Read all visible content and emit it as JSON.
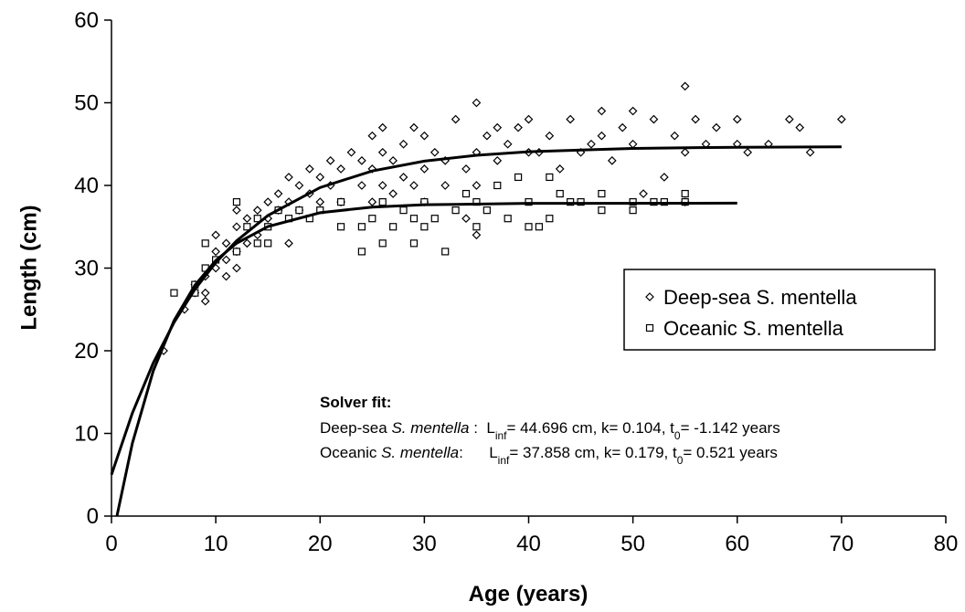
{
  "chart_data": {
    "type": "scatter",
    "x_label": "Age (years)",
    "y_label": "Length (cm)",
    "xlim": [
      0,
      80
    ],
    "xticks": [
      0,
      10,
      20,
      30,
      40,
      50,
      60,
      70,
      80
    ],
    "ylim": [
      0,
      60
    ],
    "yticks": [
      0,
      10,
      20,
      30,
      40,
      50,
      60
    ],
    "grid": false,
    "legend": "right",
    "series": [
      {
        "name": "Deep-sea S. mentella",
        "color": "#000000",
        "marker": "diamond",
        "x": [
          5,
          7,
          8,
          8,
          9,
          9,
          9,
          10,
          10,
          10,
          11,
          11,
          11,
          12,
          12,
          12,
          12,
          13,
          13,
          14,
          14,
          15,
          15,
          16,
          16,
          17,
          17,
          17,
          18,
          18,
          19,
          19,
          20,
          20,
          21,
          21,
          22,
          22,
          23,
          24,
          24,
          25,
          25,
          25,
          26,
          26,
          26,
          27,
          27,
          28,
          28,
          29,
          29,
          30,
          30,
          30,
          31,
          32,
          32,
          33,
          34,
          34,
          35,
          35,
          35,
          35,
          36,
          37,
          37,
          38,
          39,
          40,
          40,
          41,
          42,
          43,
          44,
          45,
          46,
          47,
          47,
          48,
          49,
          50,
          50,
          51,
          52,
          53,
          54,
          55,
          55,
          55,
          56,
          57,
          58,
          60,
          60,
          61,
          63,
          65,
          66,
          67,
          70
        ],
        "values": [
          20,
          25,
          27,
          28,
          26,
          27,
          29,
          30,
          32,
          34,
          29,
          31,
          33,
          30,
          32,
          35,
          37,
          33,
          36,
          34,
          37,
          36,
          38,
          37,
          39,
          33,
          38,
          41,
          37,
          40,
          39,
          42,
          38,
          41,
          40,
          43,
          38,
          42,
          44,
          40,
          43,
          38,
          42,
          46,
          40,
          44,
          47,
          39,
          43,
          41,
          45,
          40,
          47,
          38,
          42,
          46,
          44,
          40,
          43,
          48,
          36,
          42,
          34,
          40,
          44,
          50,
          46,
          43,
          47,
          45,
          47,
          44,
          48,
          44,
          46,
          42,
          48,
          44,
          45,
          49,
          46,
          43,
          47,
          49,
          45,
          39,
          48,
          41,
          46,
          52,
          44,
          38,
          48,
          45,
          47,
          48,
          45,
          44,
          45,
          48,
          47,
          44,
          48
        ]
      },
      {
        "name": "Oceanic S. mentella",
        "color": "#000000",
        "marker": "square",
        "x": [
          6,
          8,
          8,
          9,
          9,
          10,
          12,
          12,
          13,
          14,
          14,
          15,
          15,
          16,
          17,
          18,
          19,
          20,
          22,
          22,
          24,
          24,
          25,
          26,
          26,
          27,
          28,
          29,
          29,
          30,
          30,
          31,
          32,
          33,
          34,
          35,
          35,
          36,
          37,
          38,
          39,
          40,
          40,
          41,
          42,
          42,
          43,
          44,
          45,
          47,
          47,
          50,
          50,
          52,
          53,
          55,
          55
        ],
        "values": [
          27,
          27,
          28,
          30,
          33,
          31,
          32,
          38,
          35,
          33,
          36,
          33,
          35,
          37,
          36,
          37,
          36,
          37,
          35,
          38,
          32,
          35,
          36,
          33,
          38,
          35,
          37,
          33,
          36,
          35,
          38,
          36,
          32,
          37,
          39,
          35,
          38,
          37,
          40,
          36,
          41,
          35,
          38,
          35,
          41,
          36,
          39,
          38,
          38,
          37,
          39,
          37,
          38,
          38,
          38,
          39,
          38
        ]
      }
    ],
    "fit_lines": [
      {
        "color": "#000000",
        "x": [
          0,
          2,
          4,
          6,
          8,
          10,
          12,
          15,
          20,
          25,
          30,
          35,
          40,
          50,
          60,
          70
        ],
        "values": [
          5.01,
          12.46,
          18.51,
          23.43,
          27.43,
          30.67,
          33.3,
          36.36,
          39.74,
          41.75,
          42.94,
          43.65,
          44.08,
          44.48,
          44.62,
          44.67
        ]
      },
      {
        "color": "#000000",
        "x": [
          0.521,
          2,
          4,
          6,
          8,
          10,
          12,
          15,
          20,
          25,
          30,
          40,
          60
        ],
        "values": [
          0,
          8.8,
          17.55,
          23.66,
          27.93,
          30.92,
          33.01,
          35.02,
          36.7,
          37.38,
          37.66,
          37.83,
          37.856
        ]
      }
    ],
    "annotation": {
      "title": "Solver fit:",
      "lines": [
        [
          {
            "text": "Deep-sea "
          },
          {
            "text": "S. mentella",
            "style": "italic"
          },
          {
            "text": " :  L"
          },
          {
            "text": "inf",
            "style": "sub"
          },
          {
            "text": "= 44.696 cm, k= 0.104, t"
          },
          {
            "text": "0",
            "style": "sub"
          },
          {
            "text": "= -1.142 years"
          }
        ],
        [
          {
            "text": "Oceanic "
          },
          {
            "text": "S. mentella",
            "style": "italic"
          },
          {
            "text": ":      L"
          },
          {
            "text": "inf",
            "style": "sub"
          },
          {
            "text": "= 37.858 cm, k= 0.179, t"
          },
          {
            "text": "0",
            "style": "sub"
          },
          {
            "text": "= 0.521 years"
          }
        ]
      ]
    }
  }
}
